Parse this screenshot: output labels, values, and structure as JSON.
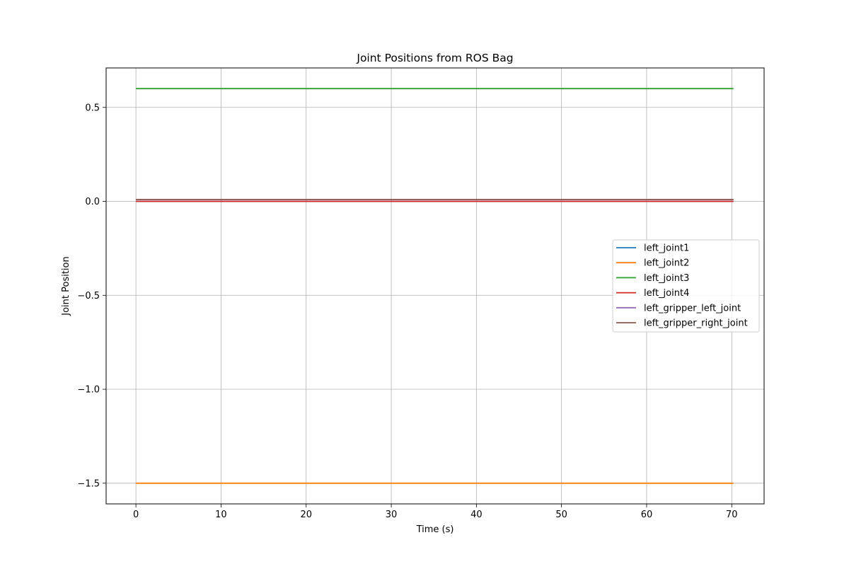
{
  "chart_data": {
    "type": "line",
    "title": "Joint Positions from ROS Bag",
    "xlabel": "Time (s)",
    "ylabel": "Joint Position",
    "xlim": [
      -3.5,
      73.8
    ],
    "ylim": [
      -1.61,
      0.71
    ],
    "xticks": [
      0,
      10,
      20,
      30,
      40,
      50,
      60,
      70
    ],
    "xtick_labels": [
      "0",
      "10",
      "20",
      "30",
      "40",
      "50",
      "60",
      "70"
    ],
    "yticks": [
      0.5,
      0.0,
      -0.5,
      -1.0,
      -1.5
    ],
    "ytick_labels": [
      "0.5",
      "0.0",
      "−0.5",
      "−1.0",
      "−1.5"
    ],
    "grid": true,
    "legend_position": "center-right",
    "x": [
      0,
      70.2
    ],
    "series": [
      {
        "name": "left_joint1",
        "color": "#1f77b4",
        "values": [
          0.0,
          0.0
        ]
      },
      {
        "name": "left_joint2",
        "color": "#ff7f0e",
        "values": [
          -1.5,
          -1.5
        ]
      },
      {
        "name": "left_joint3",
        "color": "#2ca02c",
        "values": [
          0.6,
          0.6
        ]
      },
      {
        "name": "left_joint4",
        "color": "#d62728",
        "values": [
          0.0,
          0.0
        ]
      },
      {
        "name": "left_gripper_left_joint",
        "color": "#9467bd",
        "values": [
          0.01,
          0.01
        ]
      },
      {
        "name": "left_gripper_right_joint",
        "color": "#8c564b",
        "values": [
          0.01,
          0.01
        ]
      }
    ]
  }
}
